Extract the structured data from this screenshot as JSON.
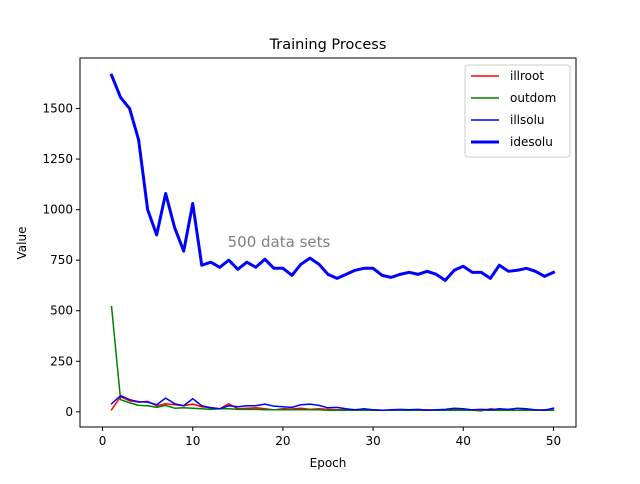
{
  "chart_data": {
    "type": "line",
    "title": "Training Process",
    "xlabel": "Epoch",
    "ylabel": "Value",
    "annotation": "500 data sets",
    "xlim": [
      -2.5,
      52.5
    ],
    "ylim": [
      -75,
      1750
    ],
    "xticks": [
      0,
      10,
      20,
      30,
      40,
      50
    ],
    "yticks": [
      0,
      250,
      500,
      750,
      1000,
      1250,
      1500
    ],
    "x": [
      1,
      2,
      3,
      4,
      5,
      6,
      7,
      8,
      9,
      10,
      11,
      12,
      13,
      14,
      15,
      16,
      17,
      18,
      19,
      20,
      21,
      22,
      23,
      24,
      25,
      26,
      27,
      28,
      29,
      30,
      31,
      32,
      33,
      34,
      35,
      36,
      37,
      38,
      39,
      40,
      41,
      42,
      43,
      44,
      45,
      46,
      47,
      48,
      49,
      50
    ],
    "legend_position": "top-right",
    "series": [
      {
        "name": "illroot",
        "color": "#ff0000",
        "linewidth": 1.5,
        "values": [
          10,
          75,
          55,
          48,
          52,
          30,
          40,
          35,
          30,
          38,
          25,
          20,
          15,
          40,
          15,
          18,
          20,
          15,
          10,
          15,
          14,
          18,
          12,
          15,
          12,
          10,
          12,
          10,
          12,
          10,
          8,
          8,
          10,
          10,
          8,
          10,
          8,
          10,
          12,
          10,
          8,
          5,
          15,
          10,
          10,
          8,
          12,
          8,
          10,
          10
        ]
      },
      {
        "name": "outdom",
        "color": "#008000",
        "linewidth": 1.5,
        "values": [
          520,
          60,
          45,
          32,
          30,
          22,
          32,
          18,
          20,
          18,
          15,
          12,
          15,
          15,
          12,
          12,
          12,
          10,
          10,
          10,
          10,
          10,
          10,
          10,
          8,
          8,
          8,
          8,
          8,
          8,
          8,
          8,
          8,
          8,
          8,
          8,
          8,
          8,
          8,
          8,
          8,
          8,
          8,
          8,
          8,
          8,
          8,
          8,
          8,
          8
        ]
      },
      {
        "name": "illsolu",
        "color": "#0000ff",
        "linewidth": 1.5,
        "values": [
          40,
          80,
          60,
          50,
          48,
          35,
          68,
          40,
          30,
          65,
          30,
          20,
          15,
          30,
          25,
          30,
          30,
          38,
          28,
          25,
          22,
          35,
          38,
          32,
          20,
          22,
          15,
          10,
          15,
          10,
          8,
          10,
          12,
          10,
          12,
          8,
          10,
          12,
          18,
          15,
          10,
          12,
          10,
          15,
          12,
          18,
          15,
          10,
          8,
          18
        ]
      },
      {
        "name": "idesolu",
        "color": "#0000ff",
        "linewidth": 3,
        "values": [
          1665,
          1555,
          1500,
          1345,
          1000,
          875,
          1080,
          910,
          795,
          1030,
          725,
          740,
          715,
          750,
          705,
          740,
          715,
          755,
          710,
          710,
          675,
          730,
          760,
          730,
          680,
          660,
          680,
          700,
          710,
          710,
          675,
          665,
          680,
          690,
          680,
          695,
          680,
          650,
          700,
          720,
          690,
          690,
          660,
          725,
          695,
          700,
          710,
          695,
          670,
          690
        ]
      }
    ]
  }
}
